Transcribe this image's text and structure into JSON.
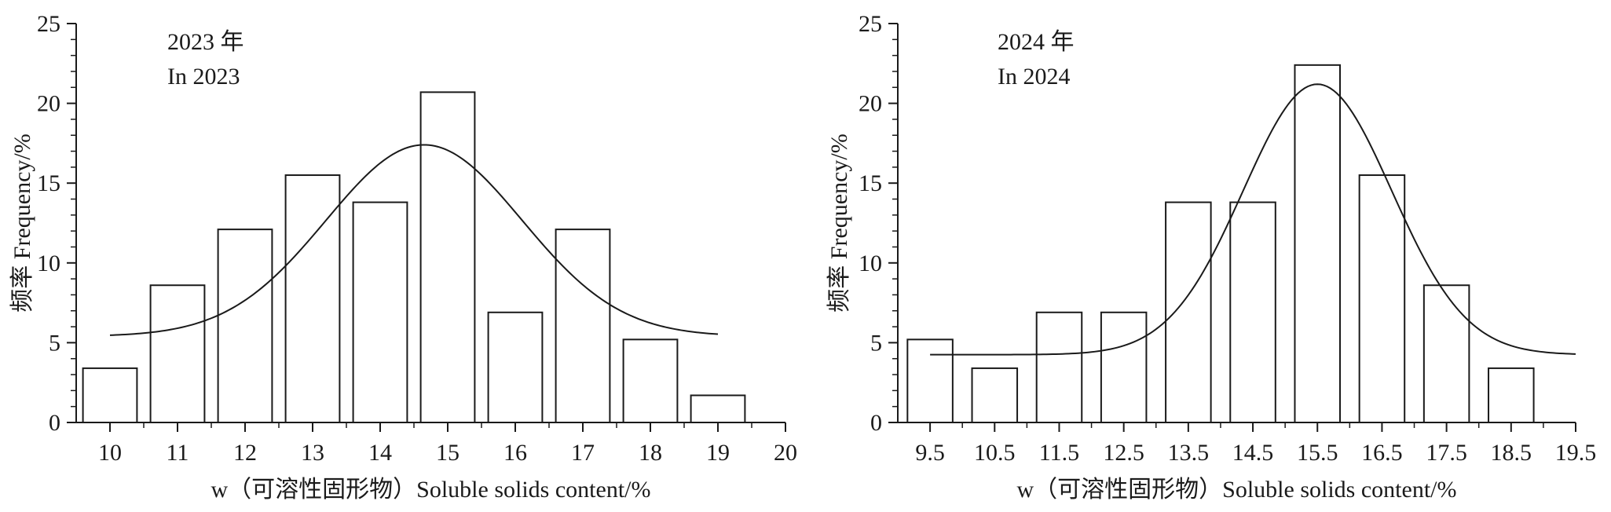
{
  "chart_data": [
    {
      "type": "bar",
      "annotation": [
        "2023 年",
        "In 2023"
      ],
      "xlabel": "w（可溶性固形物）Soluble solids content/%",
      "ylabel": "频率 Frequency/%",
      "xlim": [
        9.5,
        20
      ],
      "ylim": [
        0,
        25
      ],
      "x_ticks": [
        "10",
        "11",
        "12",
        "13",
        "14",
        "15",
        "16",
        "17",
        "18",
        "19",
        "20"
      ],
      "y_ticks": [
        "0",
        "5",
        "10",
        "15",
        "20",
        "25"
      ],
      "bar_width": 0.8,
      "categories": [
        "10",
        "11",
        "12",
        "13",
        "14",
        "15",
        "16",
        "17",
        "18",
        "19"
      ],
      "values": [
        3.4,
        8.6,
        12.1,
        15.5,
        13.8,
        20.7,
        6.9,
        12.1,
        5.2,
        1.7
      ],
      "fit_curve": {
        "type": "normal",
        "baseline": 5.4,
        "peak": 17.4,
        "mean": 14.65,
        "sd": 1.45,
        "x_range": [
          10,
          19
        ]
      },
      "grid": false
    },
    {
      "type": "bar",
      "annotation": [
        "2024 年",
        "In 2024"
      ],
      "xlabel": "w（可溶性固形物）Soluble solids content/%",
      "ylabel": "频率 Frequency/%",
      "xlim": [
        9,
        19.5
      ],
      "ylim": [
        0,
        25
      ],
      "x_ticks": [
        "9.5",
        "10.5",
        "11.5",
        "12.5",
        "13.5",
        "14.5",
        "15.5",
        "16.5",
        "17.5",
        "18.5",
        "19.5"
      ],
      "y_ticks": [
        "0",
        "5",
        "10",
        "15",
        "20",
        "25"
      ],
      "bar_width": 0.7,
      "categories": [
        "9.5",
        "10.5",
        "11.5",
        "12.5",
        "13.5",
        "14.5",
        "15.5",
        "16.5",
        "17.5",
        "18.5"
      ],
      "values": [
        5.2,
        3.4,
        6.9,
        6.9,
        13.8,
        13.8,
        22.4,
        15.5,
        8.6,
        3.4
      ],
      "fit_curve": {
        "type": "normal",
        "baseline": 4.25,
        "peak": 21.2,
        "mean": 15.5,
        "sd": 1.15,
        "x_range": [
          9.5,
          19.5
        ]
      },
      "grid": false
    }
  ]
}
